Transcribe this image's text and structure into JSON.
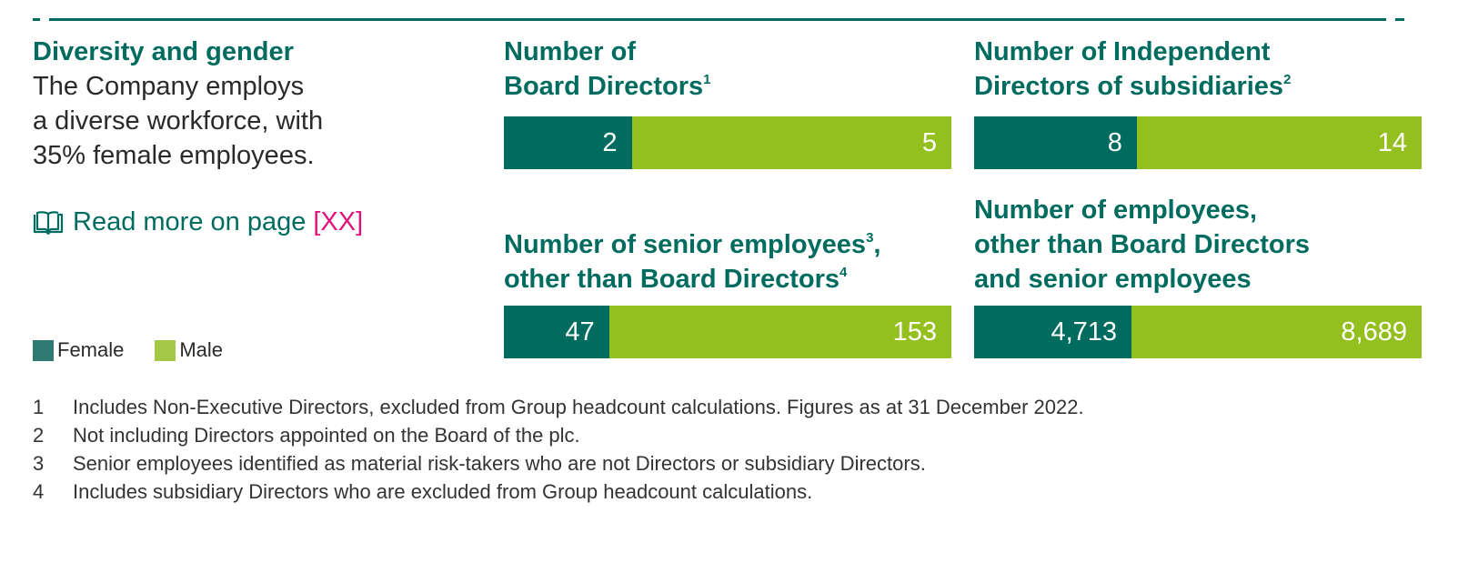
{
  "section": {
    "title": "Diversity and gender",
    "body_lines": [
      "The Company employs",
      "a diverse workforce, with",
      "35% female employees."
    ],
    "read_more": "Read more on page",
    "read_more_ref": "[XX]"
  },
  "colors": {
    "female": "#006c5f",
    "male": "#93c01f",
    "accent": "#e2127a"
  },
  "legend": {
    "female": "Female",
    "male": "Male"
  },
  "chart_data": [
    {
      "type": "bar",
      "orientation": "horizontal-stacked",
      "title_lines": [
        "Number of",
        "Board Directors"
      ],
      "title_sup": "1",
      "categories": [
        "Female",
        "Male"
      ],
      "values": [
        2,
        5
      ],
      "labels": [
        "2",
        "5"
      ]
    },
    {
      "type": "bar",
      "orientation": "horizontal-stacked",
      "title_lines": [
        "Number of Independent",
        "Directors of subsidiaries"
      ],
      "title_sup": "2",
      "categories": [
        "Female",
        "Male"
      ],
      "values": [
        8,
        14
      ],
      "labels": [
        "8",
        "14"
      ]
    },
    {
      "type": "bar",
      "orientation": "horizontal-stacked",
      "title_lines": [
        "Number of senior employees",
        "other than Board Directors"
      ],
      "title_sup_line1": "3",
      "title_sup": "4",
      "categories": [
        "Female",
        "Male"
      ],
      "values": [
        47,
        153
      ],
      "labels": [
        "47",
        "153"
      ]
    },
    {
      "type": "bar",
      "orientation": "horizontal-stacked",
      "title_lines": [
        "Number of employees,",
        "other than Board Directors",
        "and senior employees"
      ],
      "categories": [
        "Female",
        "Male"
      ],
      "values": [
        4713,
        8689
      ],
      "labels": [
        "4,713",
        "8,689"
      ]
    }
  ],
  "footnotes": [
    {
      "num": "1",
      "text": "Includes Non-Executive Directors, excluded from Group headcount calculations. Figures as at 31 December 2022."
    },
    {
      "num": "2",
      "text": "Not including Directors appointed on the Board of the plc."
    },
    {
      "num": "3",
      "text": "Senior employees identified as material risk-takers who are not Directors or subsidiary Directors."
    },
    {
      "num": "4",
      "text": "Includes subsidiary Directors who are excluded from Group headcount calculations."
    }
  ]
}
